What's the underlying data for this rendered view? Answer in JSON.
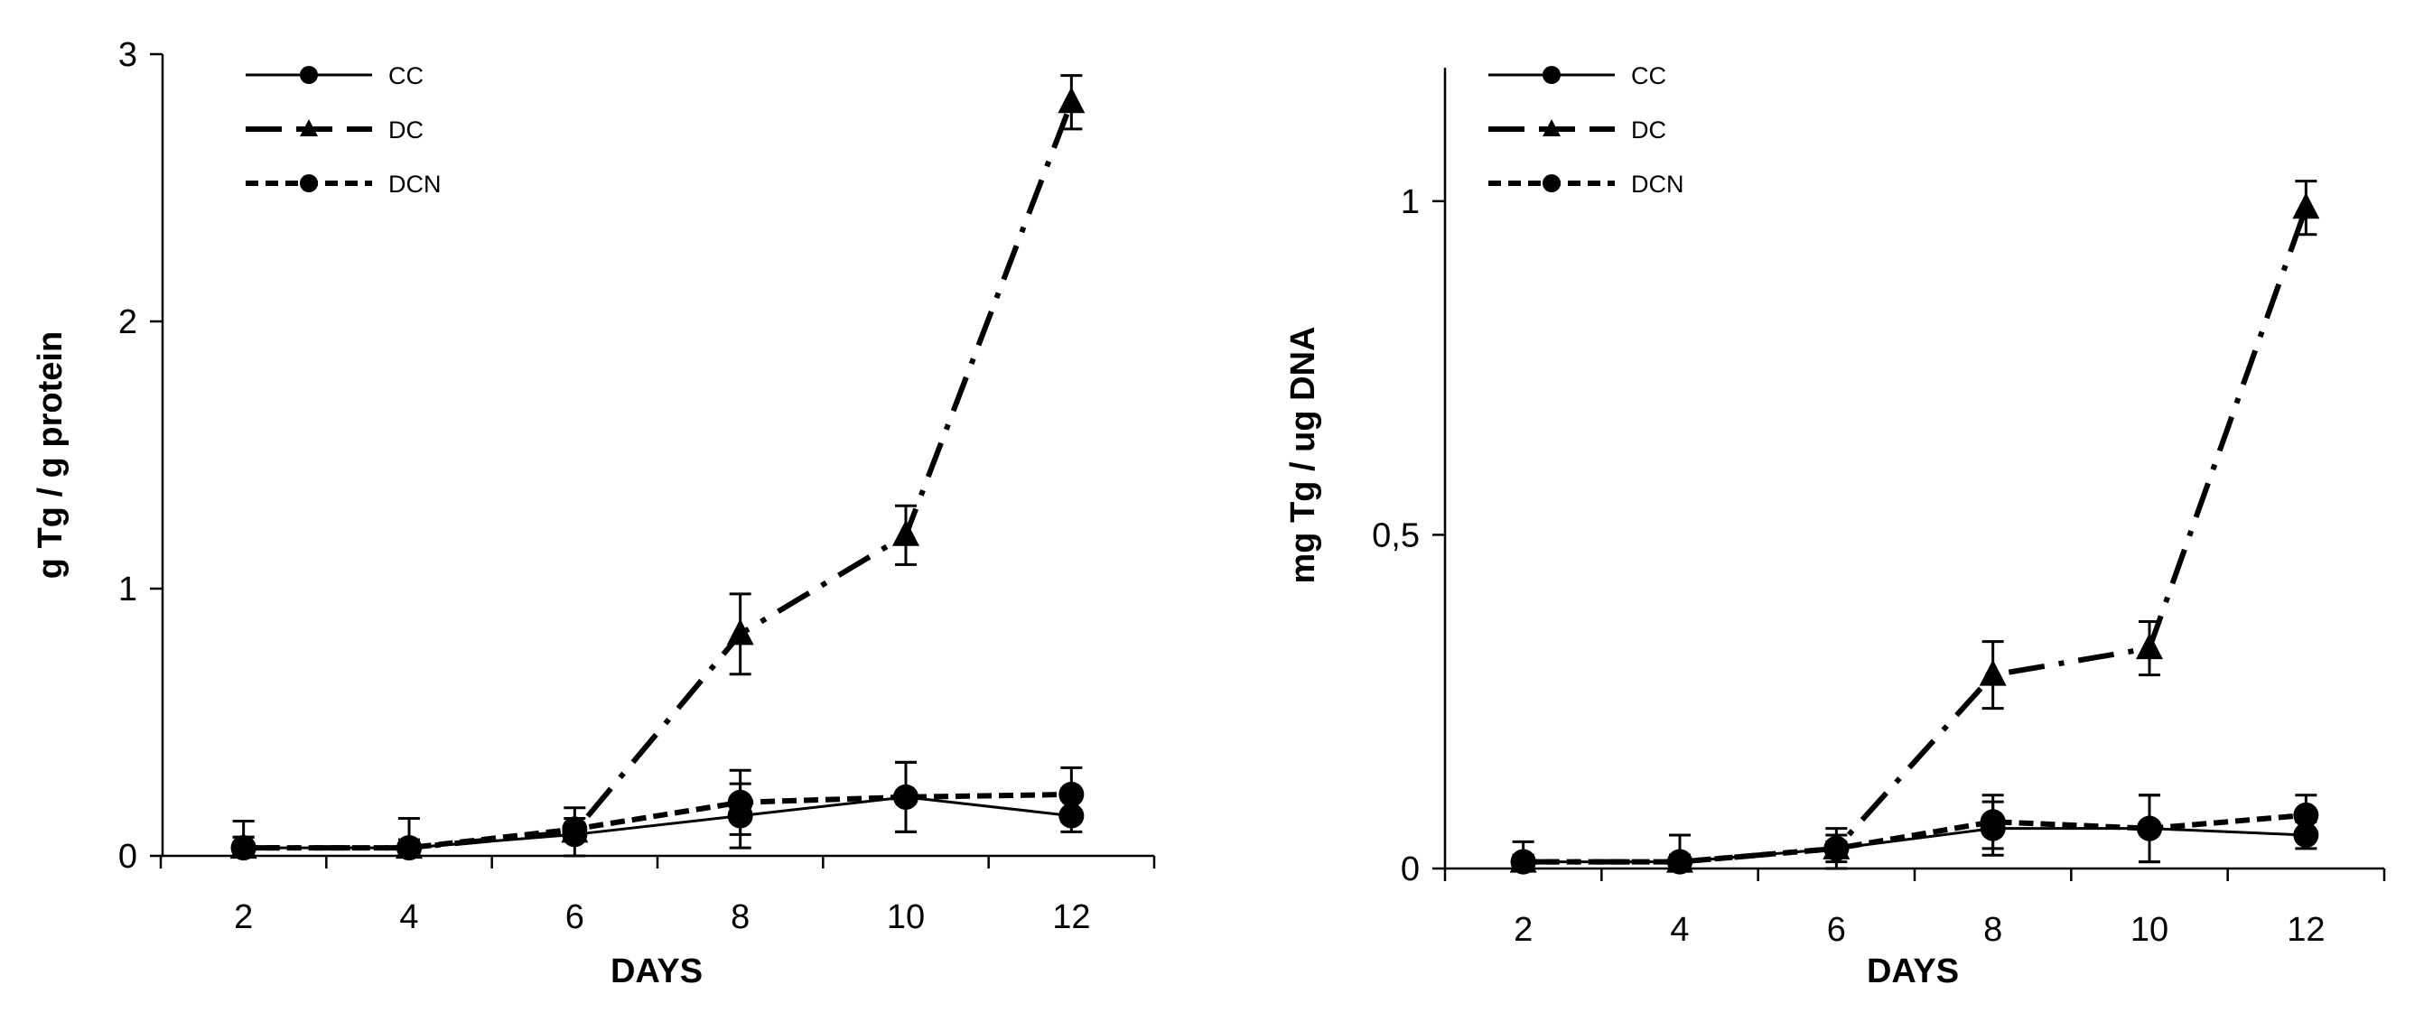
{
  "chart_data": [
    {
      "type": "line",
      "ylabel": "g Tg / g protein",
      "xlabel": "DAYS",
      "x": [
        2,
        4,
        6,
        8,
        10,
        12
      ],
      "xticks": [
        "2",
        "4",
        "6",
        "8",
        "10",
        "12"
      ],
      "ylim": [
        0,
        3
      ],
      "yticks": [
        0,
        1,
        2,
        3
      ],
      "ytick_labels": [
        "0",
        "1",
        "2",
        "3"
      ],
      "grid": false,
      "legend_position": "top-left",
      "series": [
        {
          "name": "CC",
          "values": [
            0.03,
            0.03,
            0.08,
            0.15,
            0.22,
            0.15
          ],
          "errors": [
            0.1,
            0.11,
            0.1,
            0.12,
            0.13,
            0.06
          ],
          "marker": "circle",
          "dash": "solid"
        },
        {
          "name": "DC",
          "values": [
            0.03,
            0.03,
            0.09,
            0.83,
            1.2,
            2.82
          ],
          "errors": [
            0.04,
            0.03,
            0.03,
            0.15,
            0.11,
            0.1
          ],
          "marker": "triangle",
          "dash": "dashdot"
        },
        {
          "name": "DCN",
          "values": [
            0.03,
            0.03,
            0.1,
            0.2,
            0.22,
            0.23
          ],
          "errors": [
            0.04,
            0.03,
            0.04,
            0.12,
            0.13,
            0.1
          ],
          "marker": "circle",
          "dash": "dashed"
        }
      ]
    },
    {
      "type": "line",
      "ylabel": "mg Tg  /  ug DNA",
      "xlabel": "DAYS",
      "x": [
        2,
        4,
        6,
        8,
        10,
        12
      ],
      "xticks": [
        "2",
        "4",
        "6",
        "8",
        "10",
        "12"
      ],
      "ylim": [
        0,
        1.2
      ],
      "yticks": [
        0,
        0.5,
        1
      ],
      "ytick_labels": [
        "0",
        "0,5",
        "1"
      ],
      "grid": false,
      "legend_position": "top-left",
      "series": [
        {
          "name": "CC",
          "values": [
            0.01,
            0.01,
            0.03,
            0.06,
            0.06,
            0.05
          ],
          "errors": [
            0.03,
            0.04,
            0.03,
            0.04,
            0.05,
            0.02
          ],
          "marker": "circle",
          "dash": "solid"
        },
        {
          "name": "DC",
          "values": [
            0.01,
            0.01,
            0.03,
            0.29,
            0.33,
            0.99
          ],
          "errors": [
            0.01,
            0.01,
            0.01,
            0.05,
            0.04,
            0.04
          ],
          "marker": "triangle",
          "dash": "dashdot"
        },
        {
          "name": "DCN",
          "values": [
            0.01,
            0.01,
            0.03,
            0.07,
            0.06,
            0.08
          ],
          "errors": [
            0.01,
            0.01,
            0.02,
            0.04,
            0.05,
            0.03
          ],
          "marker": "circle",
          "dash": "dashed"
        }
      ]
    }
  ]
}
